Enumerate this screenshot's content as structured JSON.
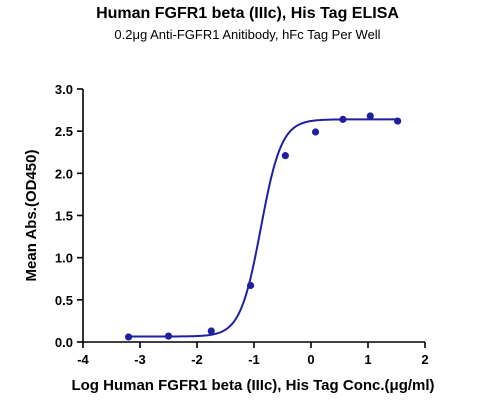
{
  "chart_data": {
    "type": "scatter",
    "title": "Human FGFR1 beta (IIIc), His Tag ELISA",
    "subtitle": "0.2μg Anti-FGFR1 Anitibody, hFc Tag Per Well",
    "xlabel": "Log Human FGFR1 beta (IIIc), His Tag Conc.(μg/ml)",
    "ylabel": "Mean Abs.(OD450)",
    "xlim": [
      -4,
      2
    ],
    "ylim": [
      0,
      3.0
    ],
    "xticks": [
      "-4",
      "-3",
      "-2",
      "-1",
      "0",
      "1",
      "2"
    ],
    "yticks": [
      "0.0",
      "0.5",
      "1.0",
      "1.5",
      "2.0",
      "2.5",
      "3.0"
    ],
    "grid": false,
    "series": [
      {
        "color": "#1f1fa0",
        "points": [
          {
            "x": -3.2,
            "y": 0.06
          },
          {
            "x": -2.5,
            "y": 0.07
          },
          {
            "x": -1.75,
            "y": 0.13
          },
          {
            "x": -1.06,
            "y": 0.67
          },
          {
            "x": -0.45,
            "y": 2.21
          },
          {
            "x": 0.08,
            "y": 2.49
          },
          {
            "x": 0.56,
            "y": 2.64
          },
          {
            "x": 1.04,
            "y": 2.68
          },
          {
            "x": 1.52,
            "y": 2.62
          }
        ],
        "fit": {
          "bottom": 0.065,
          "top": 2.64,
          "logEC50": -0.88,
          "hill": 2.4,
          "xrange": [
            -3.2,
            1.52
          ]
        }
      }
    ]
  }
}
